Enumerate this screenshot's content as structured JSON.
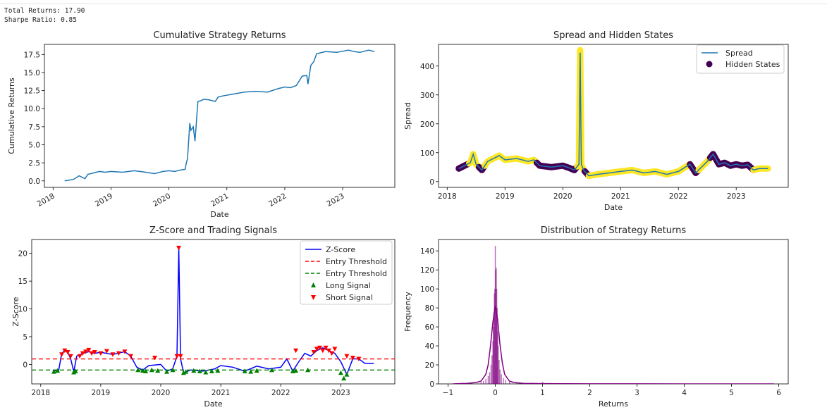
{
  "console": {
    "total_returns": "Total Returns: 17.90",
    "sharpe_ratio": "Sharpe Ratio: 0.85"
  },
  "colors": {
    "returns_line": "#1f77b4",
    "spread_line": "#1f77b4",
    "state_dark": "#440154",
    "state_light": "#fde725",
    "zscore_line": "#0000ff",
    "upper_threshold": "#ff0000",
    "lower_threshold": "#008000",
    "long_marker": "#008000",
    "short_marker": "#ff0000",
    "hist": "#800080"
  },
  "chart_data": [
    {
      "type": "line",
      "title": "Cumulative Strategy Returns",
      "xlabel": "Date",
      "ylabel": "Cumulative Returns",
      "xlim": [
        2017.85,
        2023.9
      ],
      "ylim": [
        -0.9,
        18.9
      ],
      "xticks": [
        2018,
        2019,
        2020,
        2021,
        2022,
        2023
      ],
      "xtick_labels": [
        "2018",
        "2019",
        "2020",
        "2021",
        "2022",
        "2023"
      ],
      "xtick_rotation": -30,
      "yticks": [
        0,
        2.5,
        5,
        7.5,
        10,
        12.5,
        15,
        17.5
      ],
      "ytick_labels": [
        "0.0",
        "2.5",
        "5.0",
        "7.5",
        "10.0",
        "12.5",
        "15.0",
        "17.5"
      ],
      "series": [
        {
          "x": [
            2018.2,
            2018.35,
            2018.45,
            2018.55,
            2018.6,
            2018.7,
            2018.8,
            2018.9,
            2019.0,
            2019.2,
            2019.4,
            2019.6,
            2019.75,
            2019.9,
            2020.0,
            2020.1,
            2020.2,
            2020.28,
            2020.3,
            2020.32,
            2020.36,
            2020.38,
            2020.42,
            2020.45,
            2020.5,
            2020.55,
            2020.6,
            2020.7,
            2020.8,
            2020.85,
            2020.95,
            2021.1,
            2021.3,
            2021.5,
            2021.7,
            2021.9,
            2022.0,
            2022.1,
            2022.2,
            2022.3,
            2022.38,
            2022.4,
            2022.45,
            2022.5,
            2022.55,
            2022.7,
            2022.9,
            2023.1,
            2023.2,
            2023.3,
            2023.45,
            2023.55
          ],
          "y": [
            0.0,
            0.2,
            0.7,
            0.3,
            0.9,
            1.1,
            1.3,
            1.2,
            1.3,
            1.2,
            1.4,
            1.2,
            1.0,
            1.3,
            1.4,
            1.3,
            1.5,
            1.6,
            2.5,
            3.0,
            8.0,
            7.0,
            7.5,
            5.5,
            11.0,
            11.1,
            11.3,
            11.2,
            11.0,
            11.6,
            11.8,
            12.0,
            12.3,
            12.4,
            12.3,
            12.8,
            13.0,
            12.9,
            13.2,
            14.5,
            14.6,
            13.4,
            16.0,
            16.5,
            17.6,
            17.9,
            17.8,
            18.1,
            17.9,
            17.8,
            18.1,
            17.9
          ]
        }
      ]
    },
    {
      "type": "line",
      "title": "Spread and Hidden States",
      "xlabel": "Date",
      "ylabel": "Spread",
      "xlim": [
        2017.85,
        2023.9
      ],
      "ylim": [
        -20,
        475
      ],
      "xticks": [
        2018,
        2019,
        2020,
        2021,
        2022,
        2023
      ],
      "xtick_labels": [
        "2018",
        "2019",
        "2020",
        "2021",
        "2022",
        "2023"
      ],
      "yticks": [
        0,
        100,
        200,
        300,
        400
      ],
      "ytick_labels": [
        "0",
        "100",
        "200",
        "300",
        "400"
      ],
      "legend": "top-right",
      "series": [
        {
          "name": "Spread",
          "x": [
            2018.2,
            2018.3,
            2018.4,
            2018.45,
            2018.5,
            2018.6,
            2018.7,
            2018.8,
            2018.9,
            2019.0,
            2019.2,
            2019.4,
            2019.5,
            2019.6,
            2019.8,
            2020.0,
            2020.1,
            2020.2,
            2020.28,
            2020.3,
            2020.32,
            2020.36,
            2020.45,
            2020.6,
            2020.8,
            2021.0,
            2021.2,
            2021.4,
            2021.6,
            2021.8,
            2022.0,
            2022.2,
            2022.3,
            2022.4,
            2022.5,
            2022.6,
            2022.7,
            2022.8,
            2022.9,
            2023.0,
            2023.1,
            2023.2,
            2023.3,
            2023.4,
            2023.55
          ],
          "y": [
            45,
            55,
            65,
            95,
            60,
            40,
            70,
            80,
            90,
            75,
            80,
            70,
            75,
            55,
            50,
            55,
            48,
            40,
            60,
            455,
            60,
            40,
            20,
            25,
            30,
            35,
            40,
            30,
            35,
            25,
            35,
            60,
            30,
            50,
            70,
            95,
            60,
            65,
            55,
            60,
            55,
            58,
            40,
            45,
            45
          ]
        },
        {
          "name": "Hidden States",
          "state_segments": [
            {
              "from": 2018.2,
              "to": 2018.38,
              "state": "dark"
            },
            {
              "from": 2018.38,
              "to": 2018.55,
              "state": "light"
            },
            {
              "from": 2018.55,
              "to": 2018.65,
              "state": "dark"
            },
            {
              "from": 2018.65,
              "to": 2019.55,
              "state": "light"
            },
            {
              "from": 2019.55,
              "to": 2020.25,
              "state": "dark"
            },
            {
              "from": 2020.25,
              "to": 2020.38,
              "state": "light"
            },
            {
              "from": 2020.38,
              "to": 2020.45,
              "state": "dark"
            },
            {
              "from": 2020.45,
              "to": 2022.2,
              "state": "light"
            },
            {
              "from": 2022.2,
              "to": 2022.35,
              "state": "dark"
            },
            {
              "from": 2022.35,
              "to": 2022.55,
              "state": "light"
            },
            {
              "from": 2022.55,
              "to": 2023.3,
              "state": "dark"
            },
            {
              "from": 2023.3,
              "to": 2023.55,
              "state": "light"
            }
          ]
        }
      ]
    },
    {
      "type": "line",
      "title": "Z-Score and Trading Signals",
      "xlabel": "Date",
      "ylabel": "Z-Score",
      "xlim": [
        2017.85,
        2023.9
      ],
      "ylim": [
        -3.5,
        22.5
      ],
      "xticks": [
        2018,
        2019,
        2020,
        2021,
        2022,
        2023
      ],
      "xtick_labels": [
        "2018",
        "2019",
        "2020",
        "2021",
        "2022",
        "2023"
      ],
      "yticks": [
        0,
        5,
        10,
        15,
        20
      ],
      "ytick_labels": [
        "0",
        "5",
        "10",
        "15",
        "20"
      ],
      "legend": "top-right",
      "series": [
        {
          "name": "Z-Score",
          "x": [
            2018.2,
            2018.3,
            2018.35,
            2018.4,
            2018.45,
            2018.5,
            2018.55,
            2018.6,
            2018.7,
            2018.8,
            2018.9,
            2019.0,
            2019.2,
            2019.4,
            2019.5,
            2019.6,
            2019.7,
            2019.8,
            2020.0,
            2020.1,
            2020.2,
            2020.27,
            2020.3,
            2020.33,
            2020.38,
            2020.5,
            2020.7,
            2020.9,
            2021.0,
            2021.2,
            2021.4,
            2021.6,
            2021.8,
            2022.0,
            2022.1,
            2022.2,
            2022.3,
            2022.4,
            2022.5,
            2022.6,
            2022.7,
            2022.8,
            2022.9,
            2023.0,
            2023.1,
            2023.2,
            2023.3,
            2023.4,
            2023.55
          ],
          "y": [
            -1.2,
            -1.0,
            2.0,
            2.5,
            2.2,
            1.0,
            -1.3,
            1.5,
            2.0,
            2.3,
            2.0,
            2.2,
            1.8,
            2.3,
            1.5,
            -0.5,
            -1.0,
            -0.2,
            0.0,
            -1.2,
            -0.8,
            1.5,
            21.0,
            1.0,
            -1.5,
            -1.0,
            -1.2,
            -0.8,
            -0.2,
            -0.5,
            -1.2,
            -0.3,
            -0.8,
            -0.5,
            1.0,
            -1.2,
            0.5,
            2.0,
            1.5,
            2.5,
            3.0,
            2.5,
            2.0,
            0.5,
            -1.8,
            1.0,
            1.0,
            0.2,
            0.2
          ]
        },
        {
          "name": "Entry Threshold",
          "y": 1.0,
          "style": "dashed",
          "color": "red"
        },
        {
          "name": "Entry Threshold",
          "y": -1.0,
          "style": "dashed",
          "color": "green"
        },
        {
          "name": "Long Signal",
          "x": [
            2018.22,
            2018.28,
            2018.55,
            2018.58,
            2019.62,
            2019.7,
            2019.75,
            2019.85,
            2019.95,
            2020.1,
            2020.2,
            2020.38,
            2020.42,
            2020.55,
            2020.65,
            2020.75,
            2020.85,
            2020.95,
            2021.4,
            2021.5,
            2021.6,
            2021.85,
            2022.2,
            2022.25,
            2022.45,
            2023.0,
            2023.05,
            2023.1
          ],
          "y": [
            -1.3,
            -1.1,
            -1.4,
            -1.2,
            -1.0,
            -1.1,
            -1.2,
            -1.0,
            -1.1,
            -1.3,
            -1.0,
            -1.5,
            -1.3,
            -1.1,
            -1.2,
            -1.4,
            -1.2,
            -1.1,
            -1.2,
            -1.3,
            -1.1,
            -1.0,
            -1.2,
            -1.1,
            -1.0,
            -1.5,
            -2.5,
            -1.8
          ]
        },
        {
          "name": "Short Signal",
          "x": [
            2018.35,
            2018.4,
            2018.45,
            2018.5,
            2018.65,
            2018.7,
            2018.75,
            2018.8,
            2018.85,
            2018.9,
            2019.0,
            2019.1,
            2019.2,
            2019.3,
            2019.4,
            2019.5,
            2019.9,
            2020.27,
            2020.3,
            2020.33,
            2022.25,
            2022.55,
            2022.6,
            2022.65,
            2022.7,
            2022.75,
            2022.8,
            2022.85,
            2022.9,
            2023.1,
            2023.2,
            2023.3
          ],
          "y": [
            1.8,
            2.5,
            2.2,
            1.5,
            1.5,
            2.0,
            2.3,
            2.6,
            2.0,
            2.2,
            2.0,
            2.4,
            1.8,
            2.0,
            2.3,
            1.5,
            1.2,
            1.5,
            21.0,
            1.5,
            2.5,
            2.2,
            2.8,
            3.0,
            2.5,
            3.0,
            2.5,
            2.0,
            2.8,
            1.5,
            1.2,
            1.0
          ]
        }
      ]
    },
    {
      "type": "histogram",
      "title": "Distribution of Strategy Returns",
      "xlabel": "Returns",
      "ylabel": "Frequency",
      "xlim": [
        -1.2,
        6.2
      ],
      "ylim": [
        0,
        152
      ],
      "xticks": [
        -1,
        0,
        1,
        2,
        3,
        4,
        5,
        6
      ],
      "xtick_labels": [
        "−1",
        "0",
        "1",
        "2",
        "3",
        "4",
        "5",
        "6"
      ],
      "yticks": [
        0,
        20,
        40,
        60,
        80,
        100,
        120,
        140
      ],
      "ytick_labels": [
        "0",
        "20",
        "40",
        "60",
        "80",
        "100",
        "120",
        "140"
      ],
      "bins": {
        "centers": [
          -0.3,
          -0.25,
          -0.2,
          -0.15,
          -0.12,
          -0.09,
          -0.07,
          -0.05,
          -0.04,
          -0.03,
          -0.02,
          -0.01,
          0.0,
          0.01,
          0.02,
          0.03,
          0.04,
          0.05,
          0.06,
          0.08,
          0.1,
          0.13,
          0.17,
          0.22,
          0.3,
          0.45,
          0.8,
          1.0
        ],
        "counts": [
          2,
          3,
          5,
          8,
          12,
          20,
          30,
          45,
          60,
          75,
          95,
          100,
          145,
          120,
          122,
          100,
          80,
          55,
          40,
          25,
          15,
          10,
          6,
          4,
          2,
          1,
          1,
          2
        ],
        "width": 0.012
      },
      "kde": {
        "x": [
          -0.9,
          -0.6,
          -0.4,
          -0.3,
          -0.2,
          -0.15,
          -0.1,
          -0.05,
          0.0,
          0.05,
          0.1,
          0.15,
          0.2,
          0.3,
          0.4,
          0.6,
          1.0,
          2.0,
          3.0,
          4.0,
          5.0,
          5.9
        ],
        "y": [
          0,
          0.5,
          1.5,
          3,
          10,
          20,
          40,
          65,
          82,
          68,
          42,
          22,
          10,
          3,
          1.5,
          0.5,
          0.3,
          0.1,
          0.05,
          0.02,
          0.01,
          0.01
        ]
      }
    }
  ]
}
